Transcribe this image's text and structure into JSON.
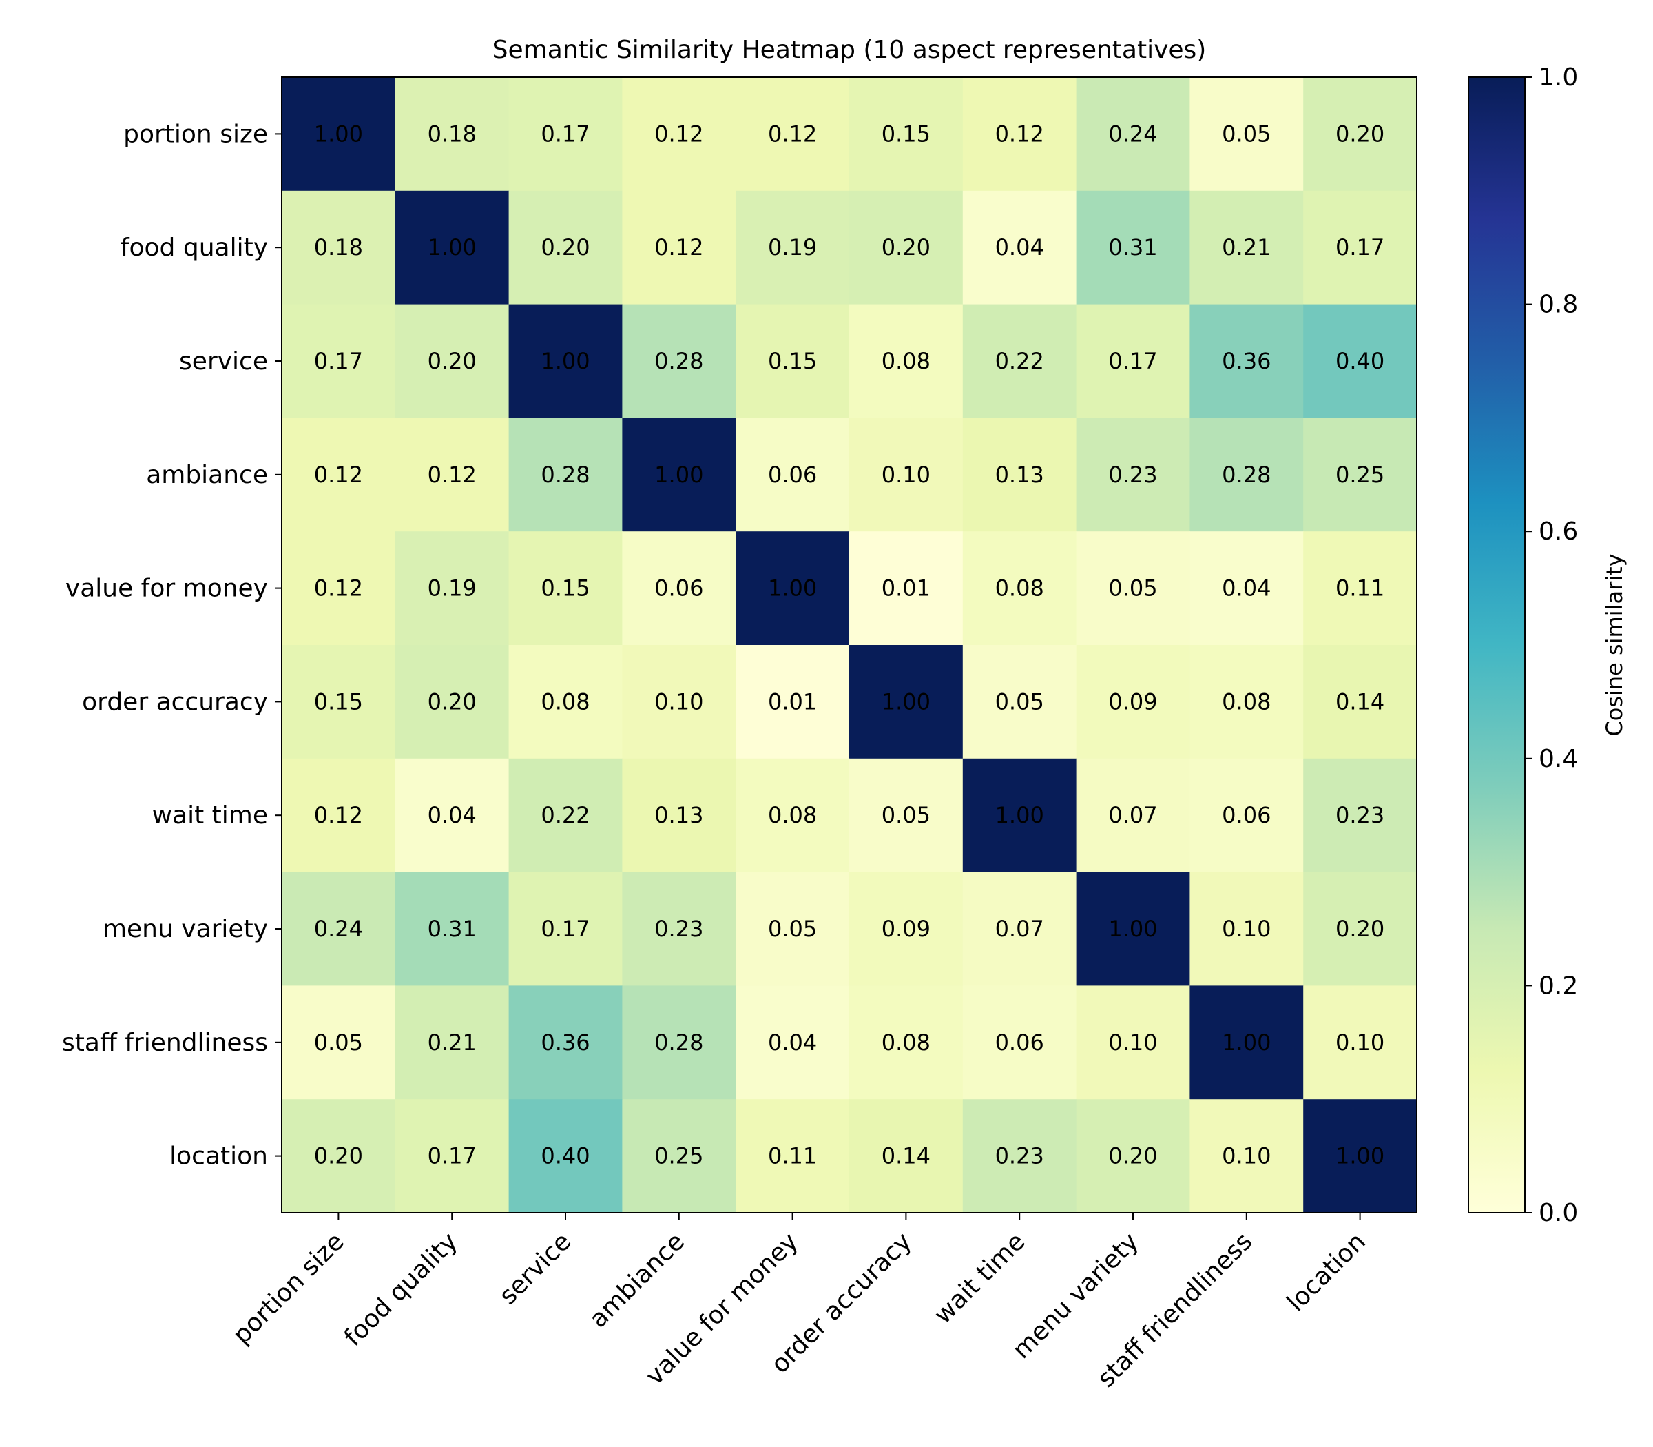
{
  "chart_data": {
    "type": "heatmap",
    "title": "Semantic Similarity Heatmap (10 aspect representatives)",
    "labels": [
      "portion size",
      "food quality",
      "service",
      "ambiance",
      "value for money",
      "order accuracy",
      "wait time",
      "menu variety",
      "staff friendliness",
      "location"
    ],
    "matrix": [
      [
        1.0,
        0.18,
        0.17,
        0.12,
        0.12,
        0.15,
        0.12,
        0.24,
        0.05,
        0.2
      ],
      [
        0.18,
        1.0,
        0.2,
        0.12,
        0.19,
        0.2,
        0.04,
        0.31,
        0.21,
        0.17
      ],
      [
        0.17,
        0.2,
        1.0,
        0.28,
        0.15,
        0.08,
        0.22,
        0.17,
        0.36,
        0.4
      ],
      [
        0.12,
        0.12,
        0.28,
        1.0,
        0.06,
        0.1,
        0.13,
        0.23,
        0.28,
        0.25
      ],
      [
        0.12,
        0.19,
        0.15,
        0.06,
        1.0,
        0.01,
        0.08,
        0.05,
        0.04,
        0.11
      ],
      [
        0.15,
        0.2,
        0.08,
        0.1,
        0.01,
        1.0,
        0.05,
        0.09,
        0.08,
        0.14
      ],
      [
        0.12,
        0.04,
        0.22,
        0.13,
        0.08,
        0.05,
        1.0,
        0.07,
        0.06,
        0.23
      ],
      [
        0.24,
        0.31,
        0.17,
        0.23,
        0.05,
        0.09,
        0.07,
        1.0,
        0.1,
        0.2
      ],
      [
        0.05,
        0.21,
        0.36,
        0.28,
        0.04,
        0.08,
        0.06,
        0.1,
        1.0,
        0.1
      ],
      [
        0.2,
        0.17,
        0.4,
        0.25,
        0.11,
        0.14,
        0.23,
        0.2,
        0.1,
        1.0
      ]
    ],
    "colormap": "YlGnBu",
    "colormap_stops": [
      "#ffffd9",
      "#edf8b1",
      "#c7e9b4",
      "#7fcdbb",
      "#41b6c4",
      "#1d91c0",
      "#225ea8",
      "#253494",
      "#081d58"
    ],
    "value_format": "2 decimals",
    "colorbar": {
      "label": "Cosine similarity",
      "range": [
        0.0,
        1.0
      ],
      "ticks": [
        "0.0",
        "0.2",
        "0.4",
        "0.6",
        "0.8",
        "1.0"
      ]
    },
    "text_color": "#000000"
  }
}
